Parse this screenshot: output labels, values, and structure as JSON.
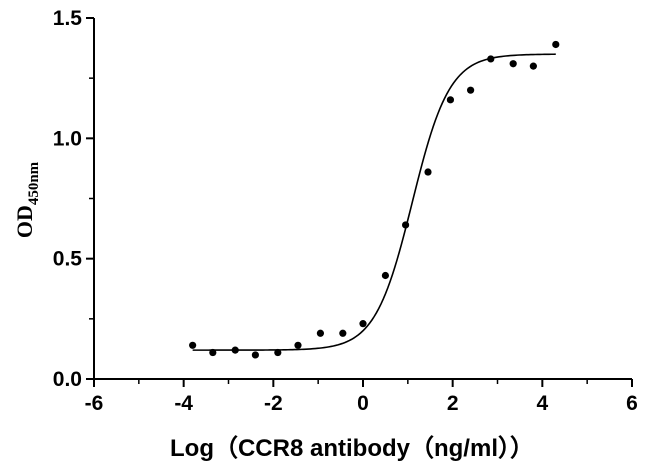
{
  "chart_data": {
    "type": "scatter",
    "xlabel": "Log（CCR8 antibody（ng/ml））",
    "ylabel_main": "OD",
    "ylabel_sub": "450nm",
    "xlim": [
      -6,
      6
    ],
    "ylim": [
      0,
      1.5
    ],
    "xticks": [
      -6,
      -4,
      -2,
      0,
      2,
      4,
      6
    ],
    "ytick_labels": [
      "0.0",
      "0.5",
      "1.0",
      "1.5"
    ],
    "grid": false,
    "points": [
      {
        "x": -3.8,
        "y": 0.14
      },
      {
        "x": -3.35,
        "y": 0.11
      },
      {
        "x": -2.85,
        "y": 0.12
      },
      {
        "x": -2.4,
        "y": 0.1
      },
      {
        "x": -1.9,
        "y": 0.11
      },
      {
        "x": -1.45,
        "y": 0.14
      },
      {
        "x": -0.95,
        "y": 0.19
      },
      {
        "x": -0.45,
        "y": 0.19
      },
      {
        "x": 0.0,
        "y": 0.23
      },
      {
        "x": 0.5,
        "y": 0.43
      },
      {
        "x": 0.95,
        "y": 0.64
      },
      {
        "x": 1.45,
        "y": 0.86
      },
      {
        "x": 1.95,
        "y": 1.16
      },
      {
        "x": 2.4,
        "y": 1.2
      },
      {
        "x": 2.85,
        "y": 1.33
      },
      {
        "x": 3.35,
        "y": 1.31
      },
      {
        "x": 3.8,
        "y": 1.3
      },
      {
        "x": 4.3,
        "y": 1.39
      }
    ],
    "fit_curve": {
      "model": "4PL",
      "bottom": 0.12,
      "top": 1.35,
      "log_ec50": 1.1,
      "hill_slope": 1.05,
      "x_start": -3.8,
      "x_end": 4.3
    }
  }
}
